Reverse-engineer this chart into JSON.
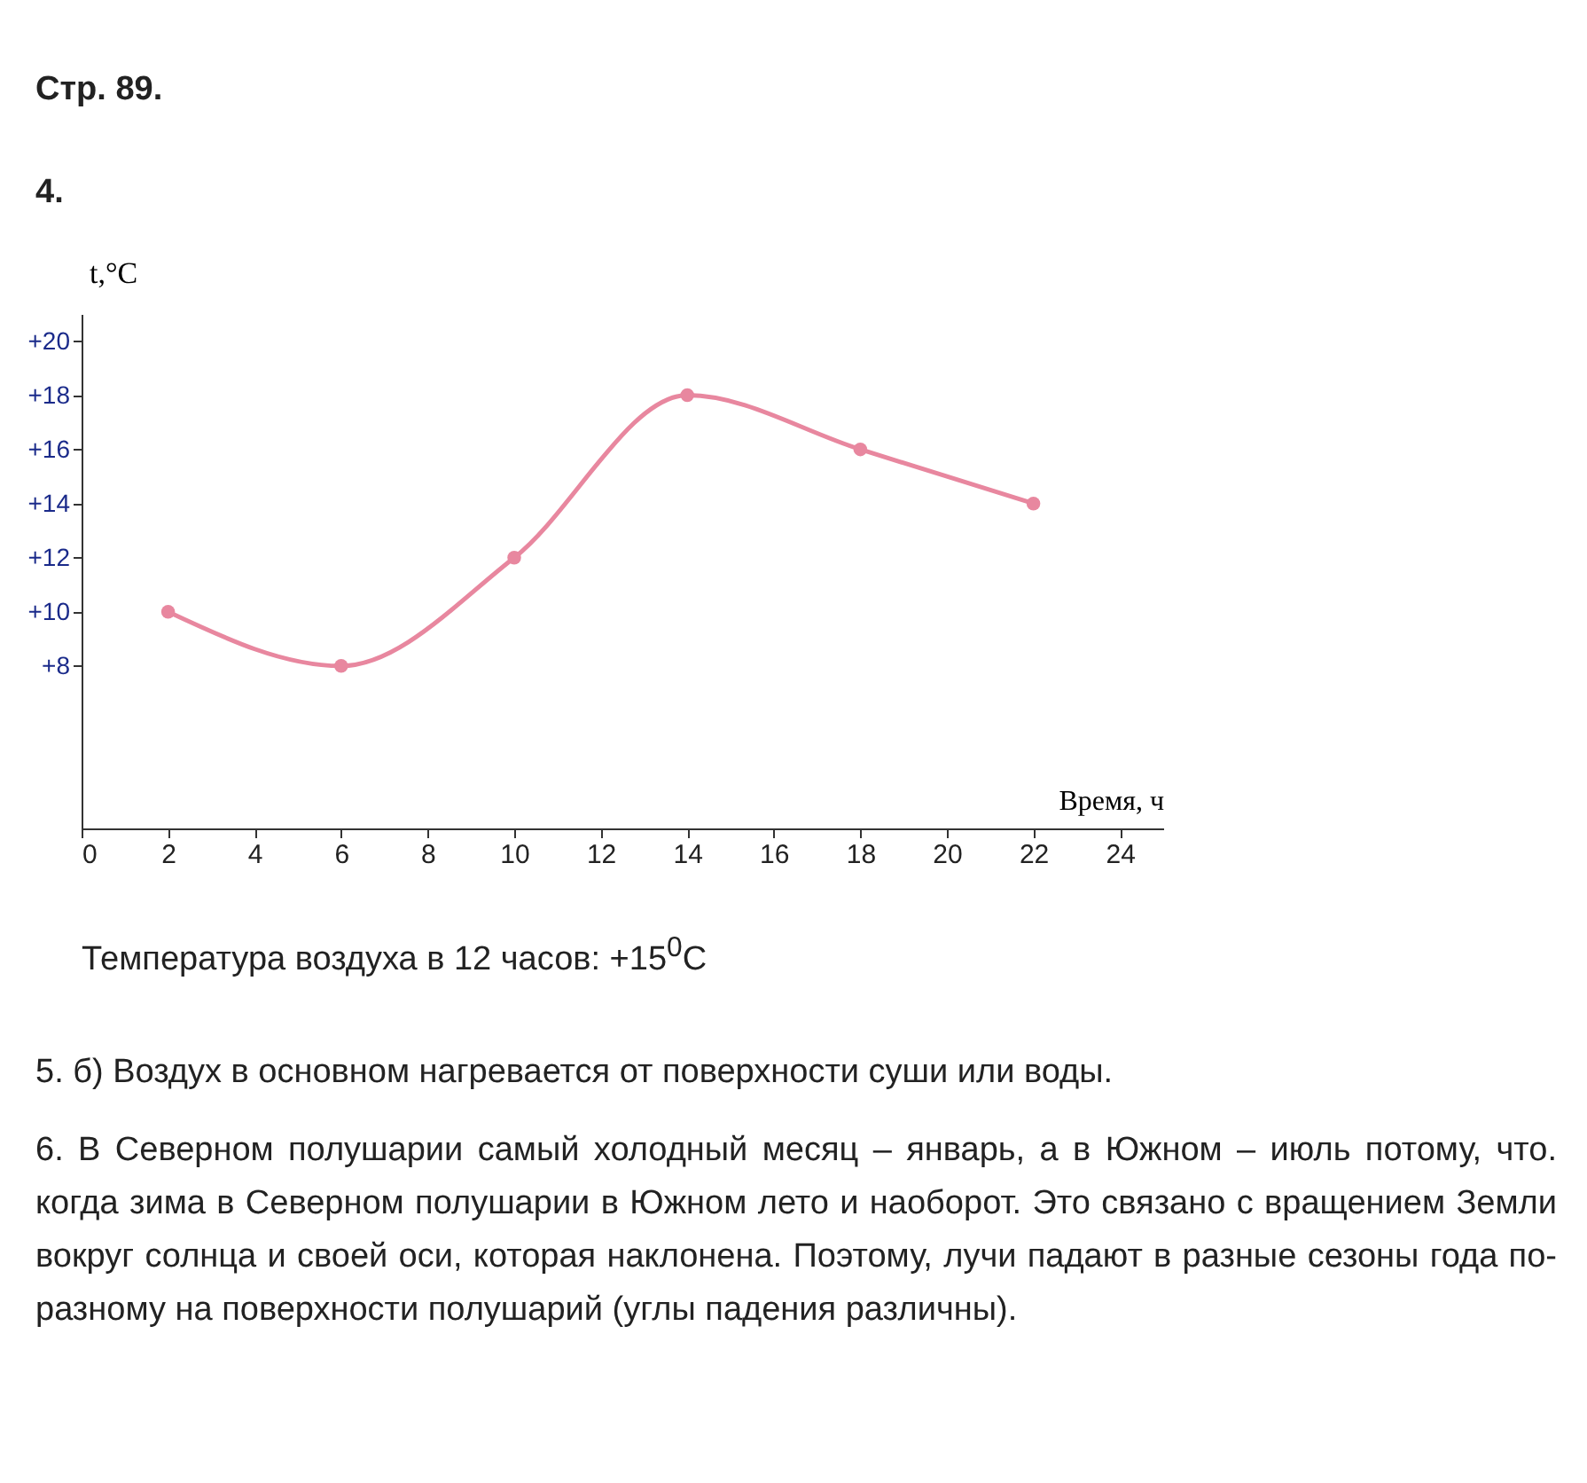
{
  "chart_data": {
    "type": "line",
    "title": "Стр. 89.",
    "subtitle": "4.",
    "xlabel": "Время, ч",
    "ylabel": "t,°C",
    "x": [
      2,
      6,
      10,
      14,
      18,
      22
    ],
    "series": [
      {
        "color": "#e8879f",
        "values": [
          10,
          8,
          12,
          18,
          16,
          14
        ]
      }
    ],
    "marker": "circle",
    "grid": false,
    "xlim": [
      0,
      25
    ],
    "xticks": [
      0,
      2,
      4,
      6,
      8,
      10,
      12,
      14,
      16,
      18,
      20,
      22,
      24
    ],
    "ylim": [
      2,
      21
    ],
    "yticks": [
      {
        "value": 8,
        "label": "+8"
      },
      {
        "value": 10,
        "label": "+10"
      },
      {
        "value": 12,
        "label": "+12"
      },
      {
        "value": 14,
        "label": "+14"
      },
      {
        "value": 16,
        "label": "+16"
      },
      {
        "value": 18,
        "label": "+18"
      },
      {
        "value": 20,
        "label": "+20"
      }
    ],
    "annotations": [
      "Температура воздуха в 12 часов: +15$^{0}$C",
      "5. б) Воздух в основном нагревается от поверхности суши или воды.",
      "6. В Северном полушарии самый холодный месяц – январь, а в Южном – июль потому, что. когда зима в Северном полушарии в Южном лето и наоборот. Это связано с вращением Земли вокруг солнца и своей оси, которая наклонена. Поэтому, лучи падают в разные сезоны года по-разному на поверхности полушарий (углы падения различны)."
    ]
  }
}
